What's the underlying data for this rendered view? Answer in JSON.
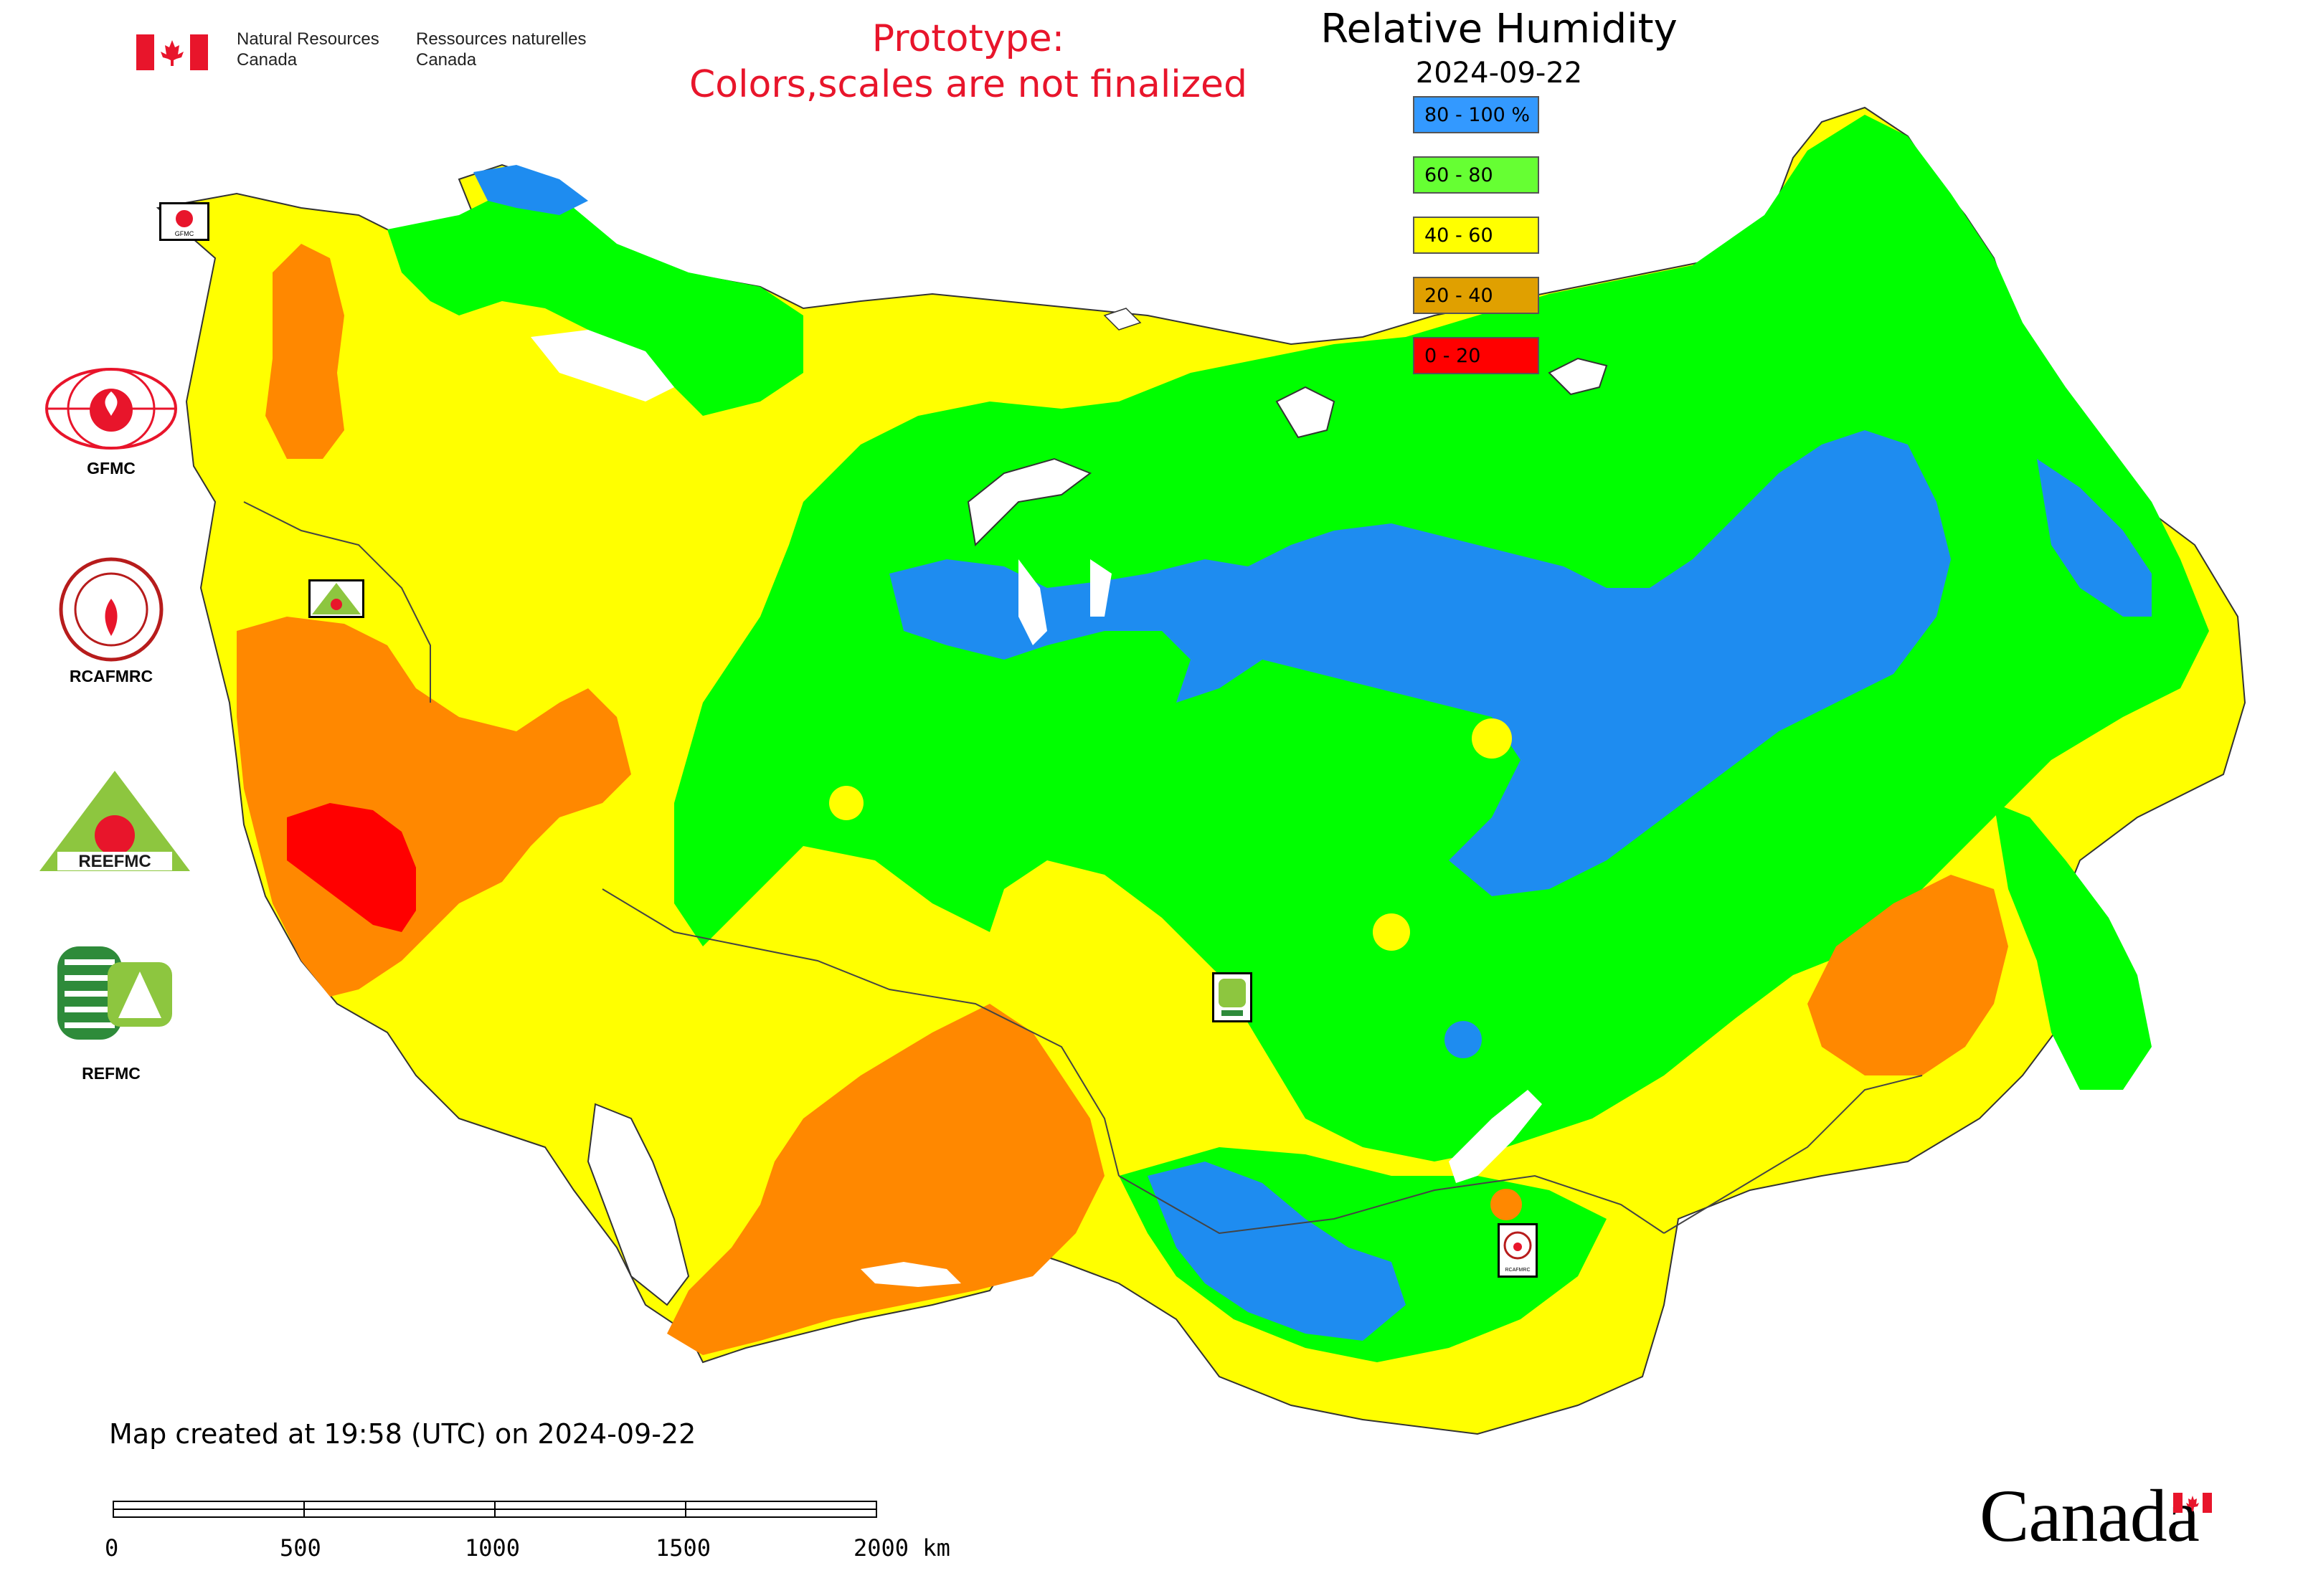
{
  "header": {
    "dept_en": [
      "Natural Resources",
      "Canada"
    ],
    "dept_fr": [
      "Ressources naturelles",
      "Canada"
    ]
  },
  "notice": [
    "Prototype:",
    "Colors,scales are not finalized"
  ],
  "map": {
    "title": "Relative Humidity",
    "date": "2024-09-22",
    "created": "Map created at 19:58 (UTC) on 2024-09-22"
  },
  "legend": [
    {
      "label": "80 - 100 %",
      "color": "#3399ff"
    },
    {
      "label": "60 - 80",
      "color": "#66ff33"
    },
    {
      "label": "40 - 60",
      "color": "#ffff00"
    },
    {
      "label": "20 - 40",
      "color": "#e0a000"
    },
    {
      "label": "0 - 20",
      "color": "#ff0000"
    }
  ],
  "logos": [
    "GFMC",
    "RCAFMRC",
    "REEFMC",
    "REFMC"
  ],
  "marker_labels": [
    "GFMC",
    "RCAFMRC"
  ],
  "scale": {
    "labels": [
      "0",
      "500",
      "1000",
      "1500",
      "2000 km"
    ]
  },
  "wordmark": "Canada",
  "palette": {
    "blue": "#1e8cf0",
    "green": "#00ff00",
    "yellow": "#ffff00",
    "orange": "#ff8800",
    "red": "#ff0000",
    "accent_red": "#e8152b"
  }
}
